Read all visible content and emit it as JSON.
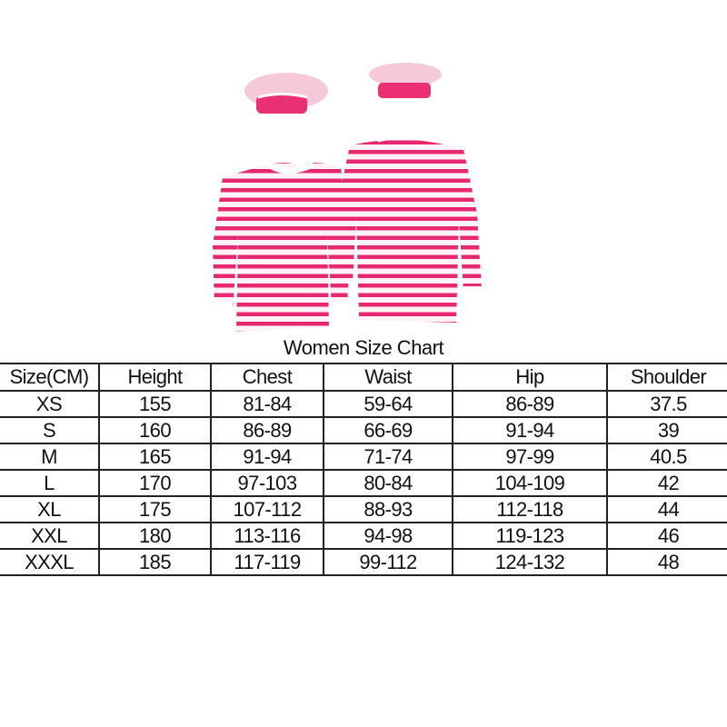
{
  "colors": {
    "stripe": "#e8286e",
    "hat_top": "#f6c9d8",
    "hat_band": "#ea2f72"
  },
  "product_images": [
    {
      "name": "front-view-shirt-and-beret"
    },
    {
      "name": "back-view-shirt-and-beret"
    }
  ],
  "chart_title": "Women Size Chart",
  "table": {
    "headers": [
      "Size(CM)",
      "Height",
      "Chest",
      "Waist",
      "Hip",
      "Shoulder"
    ],
    "rows": [
      [
        "XS",
        "155",
        "81-84",
        "59-64",
        "86-89",
        "37.5"
      ],
      [
        "S",
        "160",
        "86-89",
        "66-69",
        "91-94",
        "39"
      ],
      [
        "M",
        "165",
        "91-94",
        "71-74",
        "97-99",
        "40.5"
      ],
      [
        "L",
        "170",
        "97-103",
        "80-84",
        "104-109",
        "42"
      ],
      [
        "XL",
        "175",
        "107-112",
        "88-93",
        "112-118",
        "44"
      ],
      [
        "XXL",
        "180",
        "113-116",
        "94-98",
        "119-123",
        "46"
      ],
      [
        "XXXL",
        "185",
        "117-119",
        "99-112",
        "124-132",
        "48"
      ]
    ]
  }
}
